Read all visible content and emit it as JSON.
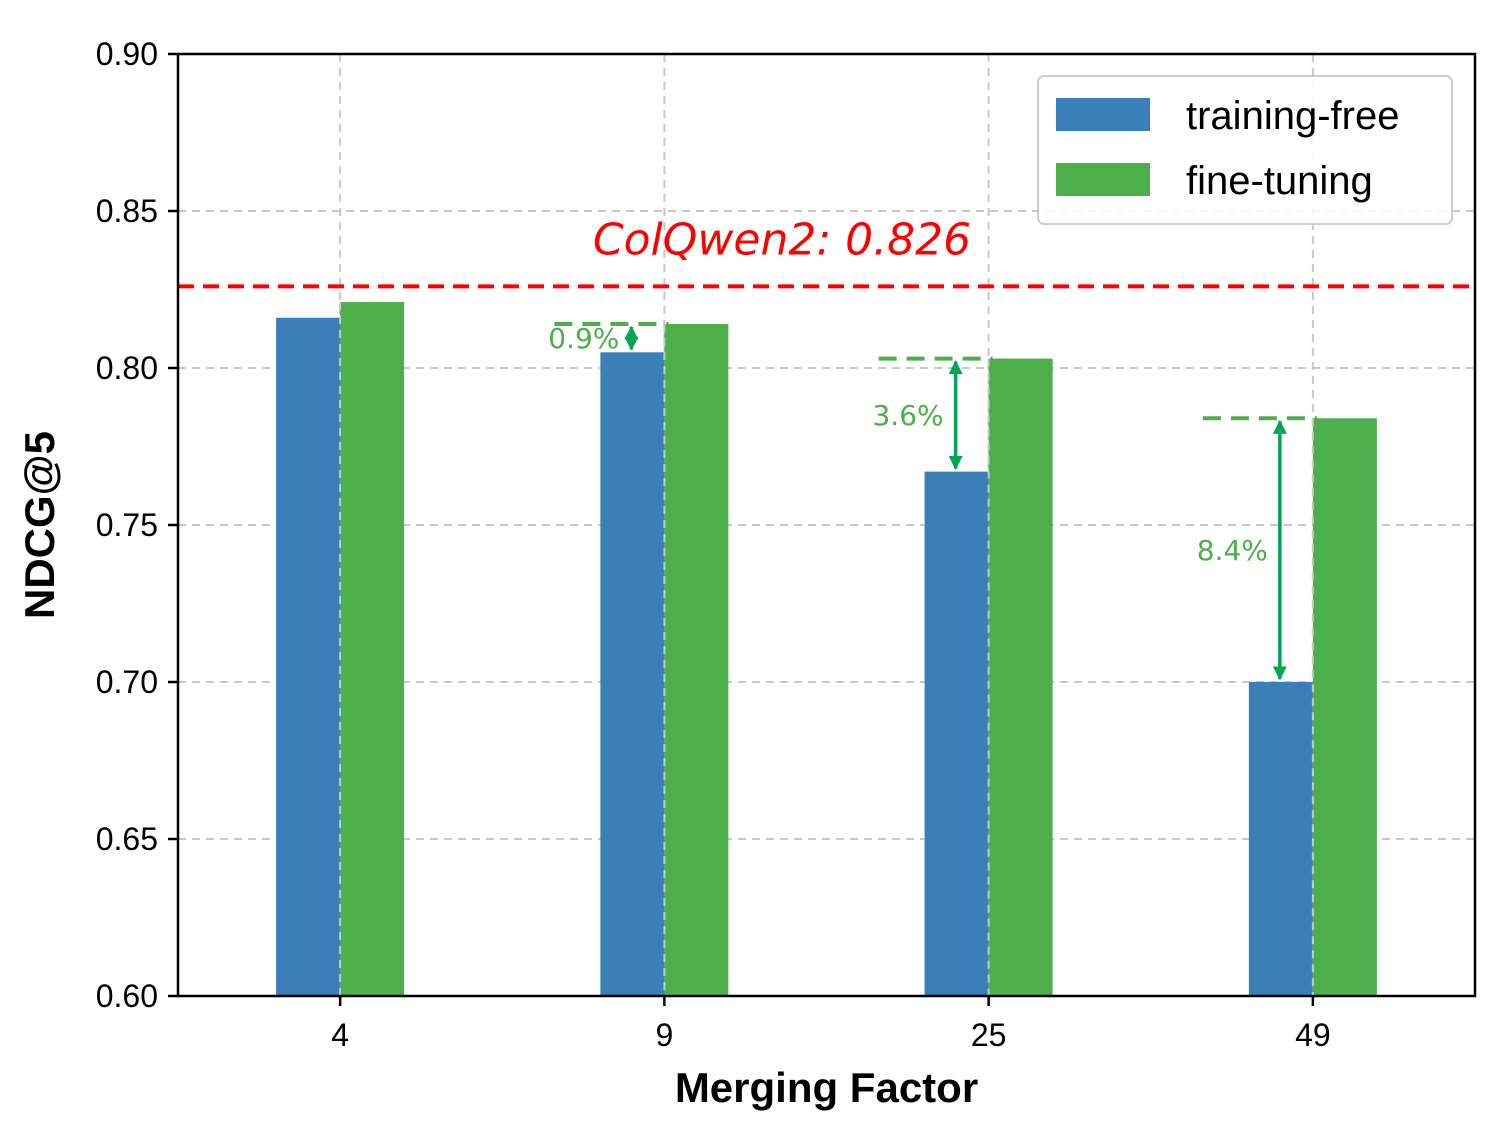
{
  "chart_data": {
    "type": "bar",
    "title": "",
    "xlabel": "Merging Factor",
    "ylabel": "NDCG@5",
    "categories": [
      "4",
      "9",
      "25",
      "49"
    ],
    "series": [
      {
        "name": "training-free",
        "color": "#3a7fb8",
        "values": [
          0.816,
          0.805,
          0.767,
          0.7
        ]
      },
      {
        "name": "fine-tuning",
        "color": "#4daf4a",
        "values": [
          0.821,
          0.814,
          0.803,
          0.784
        ]
      }
    ],
    "ylim": [
      0.6,
      0.9
    ],
    "yticks": [
      "0.60",
      "0.65",
      "0.70",
      "0.75",
      "0.80",
      "0.85",
      "0.90"
    ],
    "grid": true,
    "legend_position": "top-right",
    "reference_line": {
      "label": "ColQwen2: 0.826",
      "value": 0.826,
      "color": "#ff0000"
    },
    "annotations": [
      {
        "category": "9",
        "text": "0.9%"
      },
      {
        "category": "25",
        "text": "3.6%"
      },
      {
        "category": "49",
        "text": "8.4%"
      }
    ],
    "annotation_color": "#4daf4a",
    "arrow_color": "#00a651"
  }
}
